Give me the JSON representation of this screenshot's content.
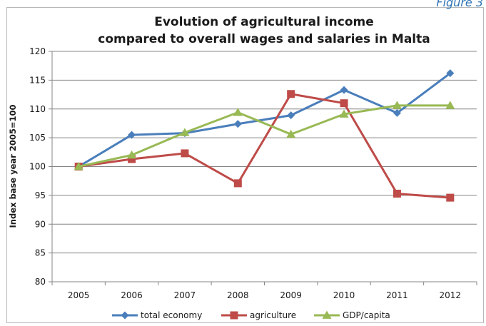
{
  "figure_label": "Figure 3",
  "chart_data": {
    "type": "line",
    "title": [
      "Evolution of agricultural income",
      "compared to overall wages and salaries in Malta"
    ],
    "ylabel": "Index base year 2005=100",
    "xlabel": "",
    "ylim": [
      80,
      120
    ],
    "yticks": [
      80,
      85,
      90,
      95,
      100,
      105,
      110,
      115,
      120
    ],
    "categories": [
      "2005",
      "2006",
      "2007",
      "2008",
      "2009",
      "2010",
      "2011",
      "2012"
    ],
    "grid": "horizontal",
    "legend_position": "bottom",
    "series": [
      {
        "name": "total economy",
        "color": "#4a7ebb",
        "marker": "diamond",
        "values": [
          100,
          105.5,
          105.8,
          107.4,
          108.9,
          113.3,
          109.3,
          116.2
        ]
      },
      {
        "name": "agriculture",
        "color": "#be4b48",
        "marker": "square",
        "values": [
          100,
          101.3,
          102.3,
          97.1,
          112.6,
          111.0,
          95.3,
          94.6
        ]
      },
      {
        "name": "GDP/capita",
        "color": "#98b954",
        "marker": "triangle",
        "values": [
          100,
          102.0,
          105.9,
          109.4,
          105.6,
          109.1,
          110.6,
          110.6
        ]
      }
    ]
  }
}
